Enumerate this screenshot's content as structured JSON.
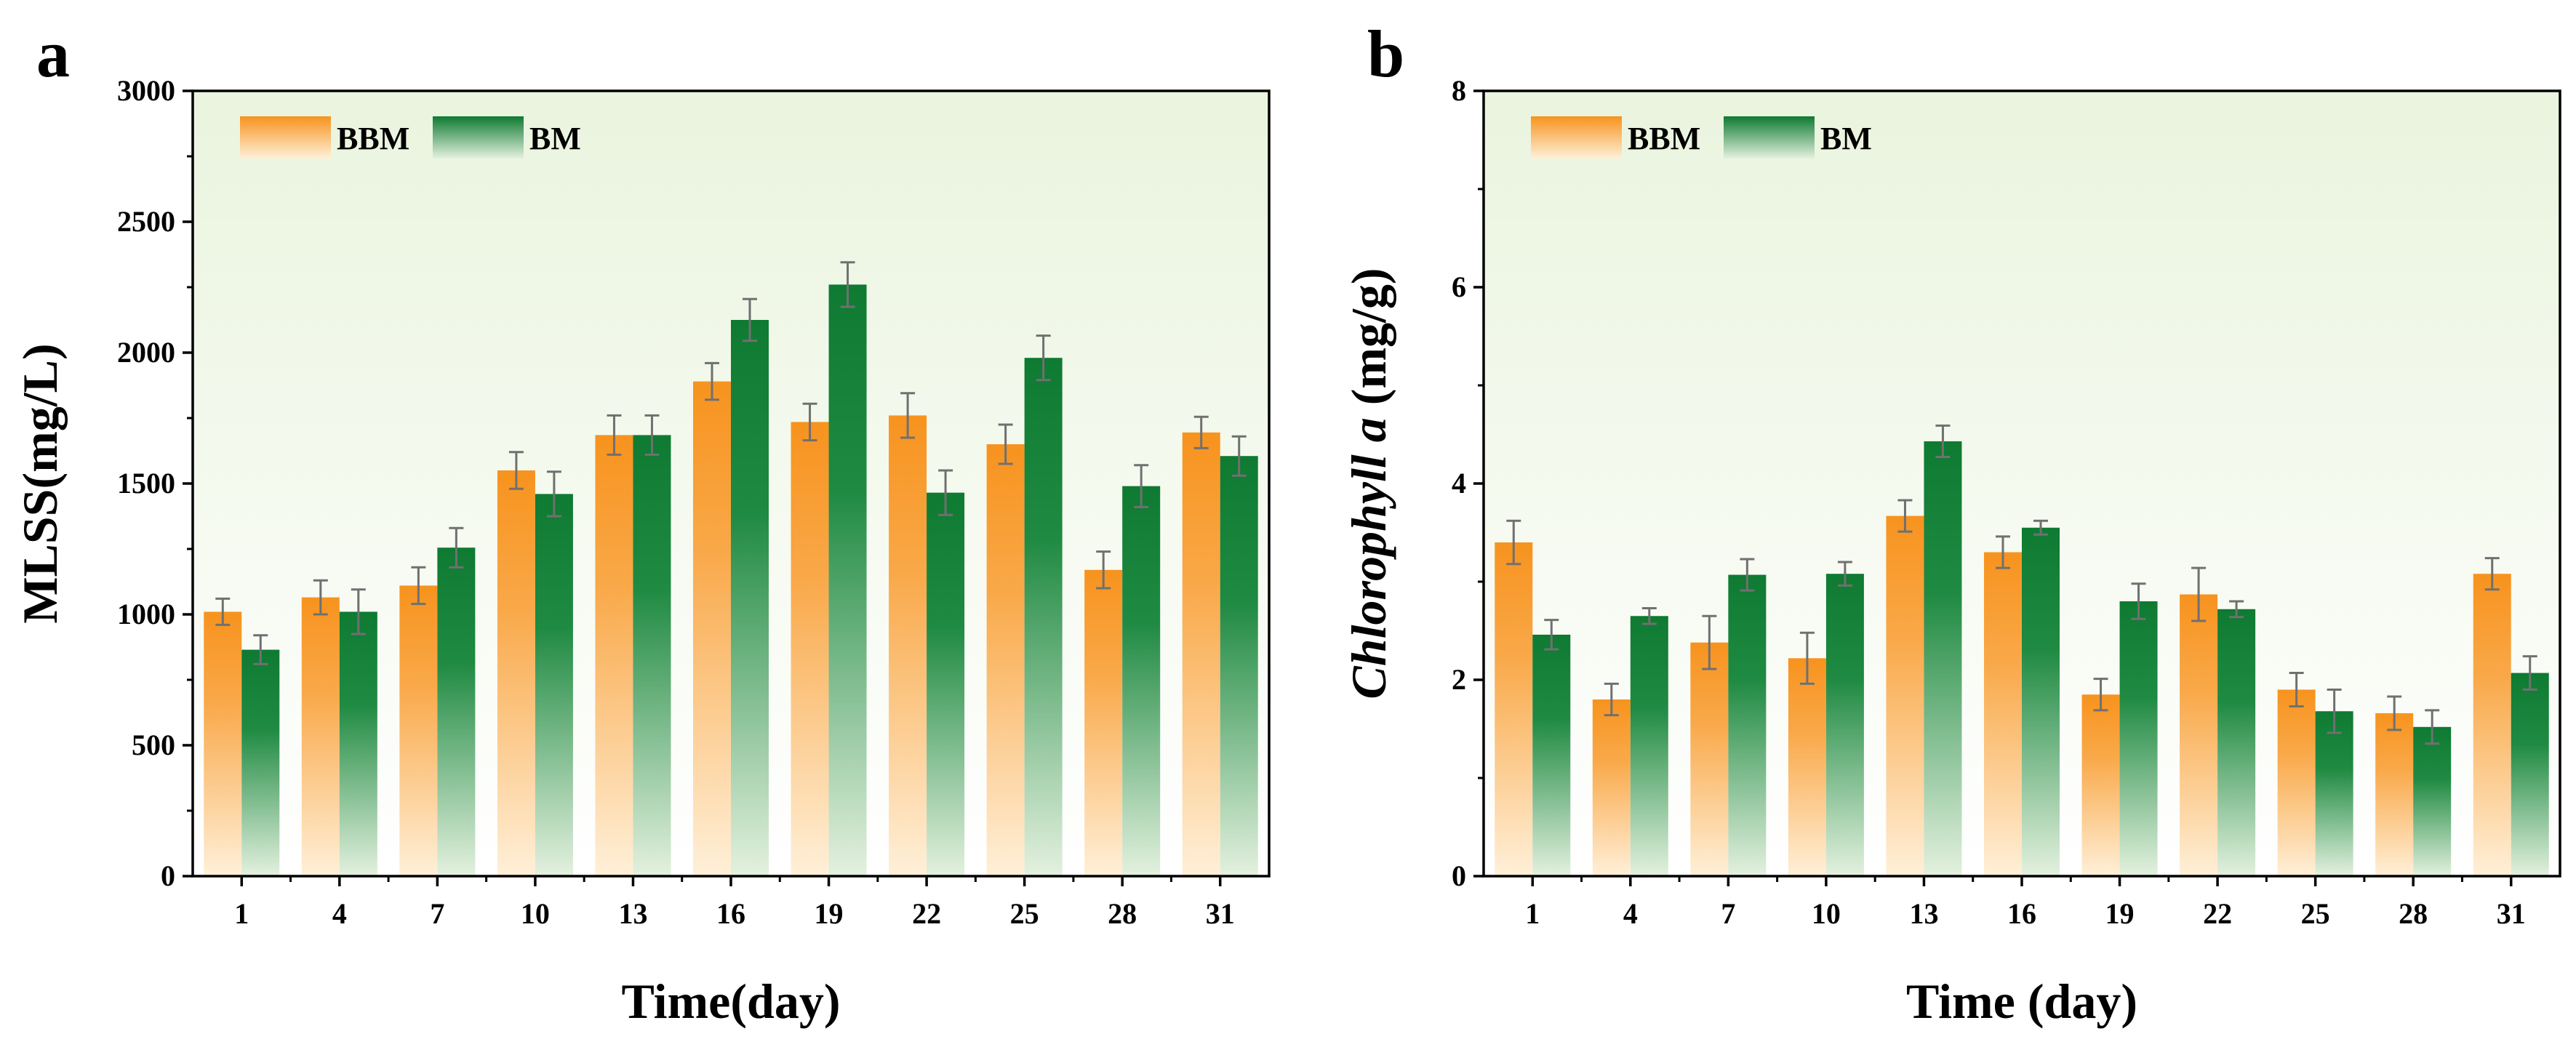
{
  "colors": {
    "bbm_top": "#F7931E",
    "bbm_bottom": "#FFF0D9",
    "bm_top": "#0E7A32",
    "bm_bottom": "#E4F1DF",
    "plot_bg_top": "#EAF4DE",
    "plot_bg_bottom": "#FFFFFF",
    "error_bar": "#707070"
  },
  "chart_data": [
    {
      "type": "bar",
      "panel": "a",
      "xlabel": "Time(day)",
      "ylabel": "MLSS(mg/L)",
      "ylabel_italic": "",
      "ylabel_rest": "",
      "categories": [
        "1",
        "4",
        "7",
        "10",
        "13",
        "16",
        "19",
        "22",
        "25",
        "28",
        "31"
      ],
      "ylim": [
        0,
        3000
      ],
      "yticks": [
        "0",
        "500",
        "1000",
        "1500",
        "2000",
        "2500",
        "3000"
      ],
      "ytick_values": [
        0,
        500,
        1000,
        1500,
        2000,
        2500,
        3000
      ],
      "minor_step": 250,
      "legend": [
        "BBM",
        "BM"
      ],
      "series": [
        {
          "name": "BBM",
          "values": [
            1010,
            1065,
            1110,
            1550,
            1685,
            1890,
            1735,
            1760,
            1650,
            1170,
            1695
          ],
          "errors": [
            50,
            65,
            70,
            70,
            75,
            70,
            70,
            85,
            75,
            70,
            60
          ]
        },
        {
          "name": "BM",
          "values": [
            865,
            1010,
            1255,
            1460,
            1685,
            2125,
            2260,
            1465,
            1980,
            1490,
            1605
          ],
          "errors": [
            55,
            85,
            75,
            85,
            75,
            80,
            85,
            85,
            85,
            80,
            75
          ]
        }
      ]
    },
    {
      "type": "bar",
      "panel": "b",
      "xlabel": "Time (day)",
      "ylabel": "",
      "ylabel_italic": "Chlorophyll a",
      "ylabel_rest": " (mg/g)",
      "categories": [
        "1",
        "4",
        "7",
        "10",
        "13",
        "16",
        "19",
        "22",
        "25",
        "28",
        "31"
      ],
      "ylim": [
        0,
        8
      ],
      "yticks": [
        "0",
        "2",
        "4",
        "6",
        "8"
      ],
      "ytick_values": [
        0,
        2,
        4,
        6,
        8
      ],
      "minor_step": 1,
      "legend": [
        "BBM",
        "BM"
      ],
      "series": [
        {
          "name": "BBM",
          "values": [
            3.4,
            1.8,
            2.38,
            2.22,
            3.67,
            3.3,
            1.85,
            2.87,
            1.9,
            1.66,
            3.08
          ],
          "errors": [
            0.22,
            0.16,
            0.27,
            0.26,
            0.16,
            0.16,
            0.16,
            0.27,
            0.17,
            0.17,
            0.16
          ]
        },
        {
          "name": "BM",
          "values": [
            2.46,
            2.65,
            3.07,
            3.08,
            4.43,
            3.55,
            2.8,
            2.72,
            1.68,
            1.52,
            2.07
          ],
          "errors": [
            0.15,
            0.08,
            0.16,
            0.12,
            0.16,
            0.07,
            0.18,
            0.08,
            0.22,
            0.17,
            0.17
          ]
        }
      ]
    }
  ]
}
